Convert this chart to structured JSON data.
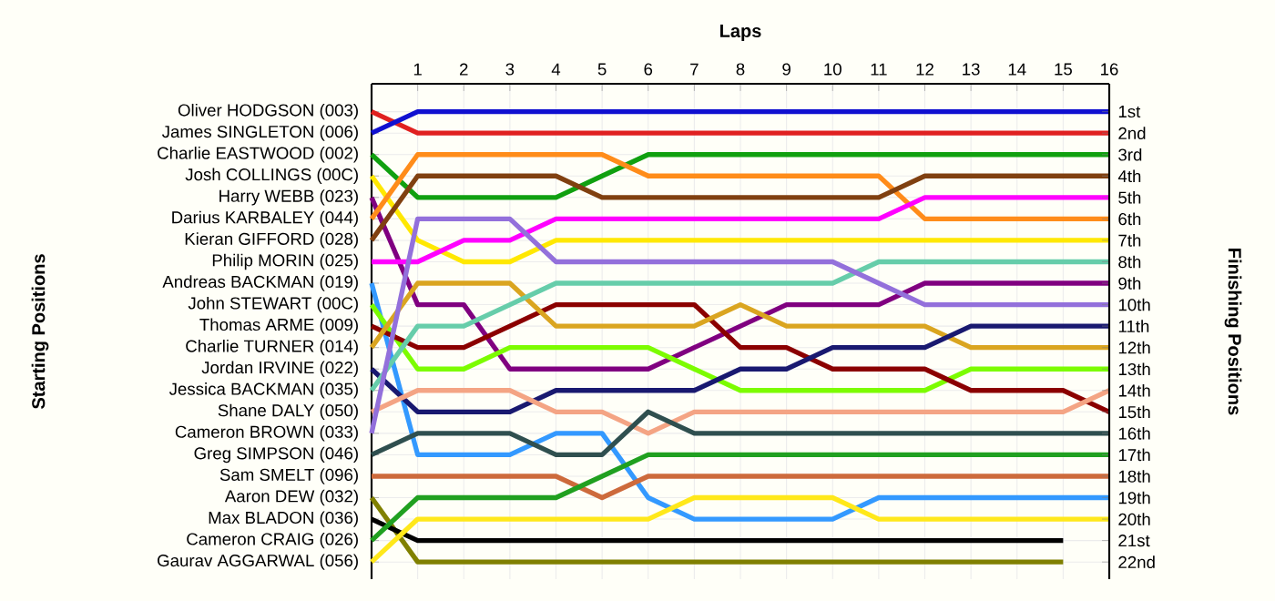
{
  "chart_data": {
    "type": "line",
    "xlabel": "Laps",
    "ylabel": "Finishing Positions",
    "annotations": [
      "Starting Positions"
    ],
    "x": [
      0,
      1,
      2,
      3,
      4,
      5,
      6,
      7,
      8,
      9,
      10,
      11,
      12,
      13,
      14,
      15,
      16
    ],
    "xlim": [
      0,
      16
    ],
    "xticks": [
      1,
      2,
      3,
      4,
      5,
      6,
      7,
      8,
      9,
      10,
      11,
      12,
      13,
      14,
      15,
      16
    ],
    "ylim": [
      22.8,
      -0.3
    ],
    "yticks": [
      {
        "value": 1,
        "label": "1st"
      },
      {
        "value": 2,
        "label": "2nd"
      },
      {
        "value": 3,
        "label": "3rd"
      },
      {
        "value": 4,
        "label": "4th"
      },
      {
        "value": 5,
        "label": "5th"
      },
      {
        "value": 6,
        "label": "6th"
      },
      {
        "value": 7,
        "label": "7th"
      },
      {
        "value": 8,
        "label": "8th"
      },
      {
        "value": 9,
        "label": "9th"
      },
      {
        "value": 10,
        "label": "10th"
      },
      {
        "value": 11,
        "label": "11th"
      },
      {
        "value": 12,
        "label": "12th"
      },
      {
        "value": 13,
        "label": "13th"
      },
      {
        "value": 14,
        "label": "14th"
      },
      {
        "value": 15,
        "label": "15th"
      },
      {
        "value": 16,
        "label": "16th"
      },
      {
        "value": 17,
        "label": "17th"
      },
      {
        "value": 18,
        "label": "18th"
      },
      {
        "value": 19,
        "label": "19th"
      },
      {
        "value": 20,
        "label": "20th"
      },
      {
        "value": 21,
        "label": "21st"
      },
      {
        "value": 22,
        "label": "22nd"
      }
    ],
    "grid": true,
    "series": [
      {
        "name": "Oliver HODGSON (003)",
        "color": "#e02020",
        "values": [
          1,
          2,
          2,
          2,
          2,
          2,
          2,
          2,
          2,
          2,
          2,
          2,
          2,
          2,
          2,
          2,
          2
        ]
      },
      {
        "name": "James SINGLETON (006)",
        "color": "#1010d0",
        "values": [
          2,
          1,
          1,
          1,
          1,
          1,
          1,
          1,
          1,
          1,
          1,
          1,
          1,
          1,
          1,
          1,
          1
        ]
      },
      {
        "name": "Charlie EASTWOOD (002)",
        "color": "#10a010",
        "values": [
          3,
          5,
          5,
          5,
          5,
          4,
          3,
          3,
          3,
          3,
          3,
          3,
          3,
          3,
          3,
          3,
          3
        ]
      },
      {
        "name": "Josh COLLINGS (00C)",
        "color": "#ffe800",
        "values": [
          4,
          7,
          8,
          8,
          7,
          7,
          7,
          7,
          7,
          7,
          7,
          7,
          7,
          7,
          7,
          7,
          7
        ]
      },
      {
        "name": "Harry WEBB (023)",
        "color": "#800080",
        "values": [
          5,
          10,
          10,
          13,
          13,
          13,
          13,
          12,
          11,
          10,
          10,
          10,
          9,
          9,
          9,
          9,
          9
        ]
      },
      {
        "name": "Darius KARBALEY (044)",
        "color": "#ff8c1a",
        "values": [
          6,
          3,
          3,
          3,
          3,
          3,
          4,
          4,
          4,
          4,
          4,
          4,
          6,
          6,
          6,
          6,
          6
        ]
      },
      {
        "name": "Kieran GIFFORD (028)",
        "color": "#804010",
        "values": [
          7,
          4,
          4,
          4,
          4,
          5,
          5,
          5,
          5,
          5,
          5,
          5,
          4,
          4,
          4,
          4,
          4
        ]
      },
      {
        "name": "Philip MORIN (025)",
        "color": "#ff00ff",
        "values": [
          8,
          8,
          7,
          7,
          6,
          6,
          6,
          6,
          6,
          6,
          6,
          6,
          5,
          5,
          5,
          5,
          5
        ]
      },
      {
        "name": "Andreas BACKMAN (019)",
        "color": "#3399ff",
        "values": [
          9,
          17,
          17,
          17,
          16,
          16,
          19,
          20,
          20,
          20,
          20,
          19,
          19,
          19,
          19,
          19,
          19
        ]
      },
      {
        "name": "John STEWART (00C)",
        "color": "#7cfc00",
        "values": [
          10,
          13,
          13,
          12,
          12,
          12,
          12,
          13,
          14,
          14,
          14,
          14,
          14,
          13,
          13,
          13,
          13
        ]
      },
      {
        "name": "Thomas ARME (009)",
        "color": "#8b0000",
        "values": [
          11,
          12,
          12,
          11,
          10,
          10,
          10,
          10,
          12,
          12,
          13,
          13,
          13,
          14,
          14,
          14,
          15
        ]
      },
      {
        "name": "Charlie TURNER (014)",
        "color": "#daa520",
        "values": [
          12,
          9,
          9,
          9,
          11,
          11,
          11,
          11,
          10,
          11,
          11,
          11,
          11,
          12,
          12,
          12,
          12
        ]
      },
      {
        "name": "Jordan IRVINE (022)",
        "color": "#191970",
        "values": [
          13,
          15,
          15,
          15,
          14,
          14,
          14,
          14,
          13,
          13,
          12,
          12,
          12,
          11,
          11,
          11,
          11
        ]
      },
      {
        "name": "Jessica BACKMAN (035)",
        "color": "#66cdaa",
        "values": [
          14,
          11,
          11,
          10,
          9,
          9,
          9,
          9,
          9,
          9,
          9,
          8,
          8,
          8,
          8,
          8,
          8
        ]
      },
      {
        "name": "Shane DALY (050)",
        "color": "#f4a484",
        "values": [
          15,
          14,
          14,
          14,
          15,
          15,
          16,
          15,
          15,
          15,
          15,
          15,
          15,
          15,
          15,
          15,
          14
        ]
      },
      {
        "name": "Cameron BROWN (033)",
        "color": "#9370db",
        "values": [
          16,
          6,
          6,
          6,
          8,
          8,
          8,
          8,
          8,
          8,
          8,
          9,
          10,
          10,
          10,
          10,
          10
        ]
      },
      {
        "name": "Greg SIMPSON (046)",
        "color": "#2f4f4f",
        "values": [
          17,
          16,
          16,
          16,
          17,
          17,
          15,
          16,
          16,
          16,
          16,
          16,
          16,
          16,
          16,
          16,
          16
        ]
      },
      {
        "name": "Sam SMELT (096)",
        "color": "#cd6a3c",
        "values": [
          18,
          18,
          18,
          18,
          18,
          19,
          18,
          18,
          18,
          18,
          18,
          18,
          18,
          18,
          18,
          18,
          18
        ]
      },
      {
        "name": "Aaron DEW (032)",
        "color": "#808000",
        "values": [
          19,
          22,
          22,
          22,
          22,
          22,
          22,
          22,
          22,
          22,
          22,
          22,
          22,
          22,
          22,
          22,
          null
        ]
      },
      {
        "name": "Max BLADON (036)",
        "color": "#000000",
        "values": [
          20,
          21,
          21,
          21,
          21,
          21,
          21,
          21,
          21,
          21,
          21,
          21,
          21,
          21,
          21,
          21,
          null
        ]
      },
      {
        "name": "Cameron CRAIG (026)",
        "color": "#20a020",
        "values": [
          21,
          19,
          19,
          19,
          19,
          18,
          17,
          17,
          17,
          17,
          17,
          17,
          17,
          17,
          17,
          17,
          17
        ]
      },
      {
        "name": "Gaurav AGGARWAL (056)",
        "color": "#ffe81a",
        "values": [
          22,
          20,
          20,
          20,
          20,
          20,
          20,
          19,
          19,
          19,
          19,
          20,
          20,
          20,
          20,
          20,
          20
        ]
      }
    ]
  }
}
